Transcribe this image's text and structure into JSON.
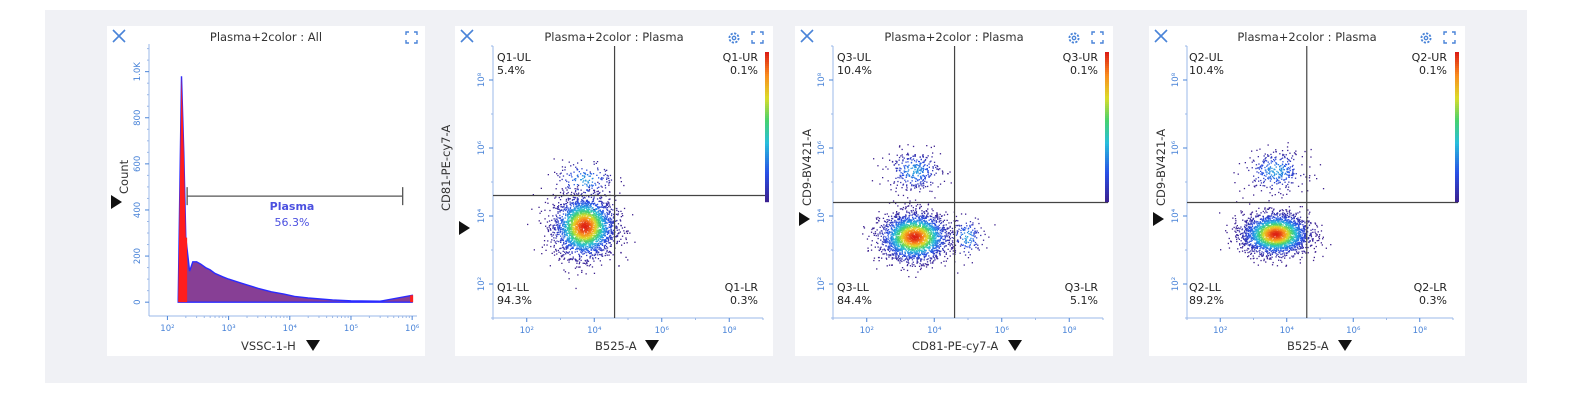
{
  "panels": [
    {
      "title": "Plasma+2color : All",
      "xlabel": "VSSC-1-H",
      "ylabel": "Count",
      "x_ticks": [
        "10²",
        "10³",
        "10⁴",
        "10⁵",
        "10⁶"
      ],
      "y_ticks": [
        "0",
        "200",
        "400",
        "600",
        "800",
        "1.0K"
      ],
      "gate": {
        "name": "Plasma",
        "percent": "56.3%"
      }
    },
    {
      "title": "Plasma+2color : Plasma",
      "xlabel": "B525-A",
      "ylabel": "CD81-PE-cy7-A",
      "x_ticks": [
        "10²",
        "10⁴",
        "10⁶",
        "10⁸"
      ],
      "y_ticks": [
        "10²",
        "10⁴",
        "10⁶",
        "10⁸"
      ],
      "quadrants": {
        "ul": {
          "name": "Q1-UL",
          "value": "5.4%"
        },
        "ur": {
          "name": "Q1-UR",
          "value": "0.1%"
        },
        "ll": {
          "name": "Q1-LL",
          "value": "94.3%"
        },
        "lr": {
          "name": "Q1-LR",
          "value": "0.3%"
        }
      }
    },
    {
      "title": "Plasma+2color : Plasma",
      "xlabel": "CD81-PE-cy7-A",
      "ylabel": "CD9-BV421-A",
      "x_ticks": [
        "10²",
        "10⁴",
        "10⁶",
        "10⁸"
      ],
      "y_ticks": [
        "10²",
        "10⁴",
        "10⁶",
        "10⁸"
      ],
      "quadrants": {
        "ul": {
          "name": "Q3-UL",
          "value": "10.4%"
        },
        "ur": {
          "name": "Q3-UR",
          "value": "0.1%"
        },
        "ll": {
          "name": "Q3-LL",
          "value": "84.4%"
        },
        "lr": {
          "name": "Q3-LR",
          "value": "5.1%"
        }
      }
    },
    {
      "title": "Plasma+2color : Plasma",
      "xlabel": "B525-A",
      "ylabel": "CD9-BV421-A",
      "x_ticks": [
        "10²",
        "10⁴",
        "10⁶",
        "10⁸"
      ],
      "y_ticks": [
        "10²",
        "10⁴",
        "10⁶",
        "10⁸"
      ],
      "quadrants": {
        "ul": {
          "name": "Q2-UL",
          "value": "10.4%"
        },
        "ur": {
          "name": "Q2-UR",
          "value": "0.1%"
        },
        "ll": {
          "name": "Q2-LL",
          "value": "89.2%"
        },
        "lr": {
          "name": "Q2-LR",
          "value": "0.3%"
        }
      }
    }
  ],
  "colors": {
    "histogram_spike": "#ff1e1e",
    "histogram_fill": "#7a2a8a",
    "histogram_edge": "#2b2bff",
    "gate_text": "#4b50e0",
    "axis_ticks": "#4a84d8",
    "background": "#f0f1f5"
  },
  "icons": [
    "close-icon",
    "expand-icon",
    "gear-icon",
    "dropdown-triangle-icon",
    "colorbar"
  ],
  "chart_data": [
    {
      "type": "histogram",
      "title": "Plasma+2color : All",
      "xlabel": "VSSC-1-H",
      "ylabel": "Count",
      "x_scale": "log",
      "xlim": [
        50,
        1200000
      ],
      "ylim": [
        -60,
        1120
      ],
      "x": [
        150,
        170,
        185,
        200,
        230,
        260,
        300,
        350,
        420,
        500,
        600,
        800,
        1000,
        1500,
        2000,
        3000,
        5000,
        8000,
        12000,
        20000,
        50000,
        100000,
        300000,
        1000000
      ],
      "y": [
        10,
        980,
        650,
        280,
        135,
        175,
        175,
        165,
        150,
        140,
        125,
        110,
        100,
        85,
        75,
        60,
        45,
        35,
        25,
        18,
        10,
        6,
        4,
        30
      ],
      "gate": {
        "name": "Plasma",
        "percent": 56.3,
        "range": [
          210,
          700000
        ]
      }
    },
    {
      "type": "scatter",
      "title": "Plasma+2color : Plasma",
      "xlabel": "B525-A",
      "ylabel": "CD81-PE-cy7-A",
      "x_scale": "log",
      "y_scale": "log",
      "xlim": [
        10,
        1000000000
      ],
      "ylim": [
        10,
        1000000000
      ],
      "quadrant_divider": {
        "x": 40000,
        "y": 40000
      },
      "quadrants": {
        "Q1-UL": 5.4,
        "Q1-UR": 0.1,
        "Q1-LL": 94.3,
        "Q1-LR": 0.3
      },
      "populations": [
        {
          "center": [
            5000,
            5000
          ],
          "spread": [
            0.45,
            0.45
          ],
          "count": 2600
        },
        {
          "center": [
            5000,
            120000
          ],
          "spread": [
            0.45,
            0.28
          ],
          "count": 160
        }
      ]
    },
    {
      "type": "scatter",
      "title": "Plasma+2color : Plasma",
      "xlabel": "CD81-PE-cy7-A",
      "ylabel": "CD9-BV421-A",
      "x_scale": "log",
      "y_scale": "log",
      "xlim": [
        10,
        1000000000
      ],
      "ylim": [
        10,
        1000000000
      ],
      "quadrant_divider": {
        "x": 40000,
        "y": 25000
      },
      "quadrants": {
        "Q3-UL": 10.4,
        "Q3-UR": 0.1,
        "Q3-LL": 84.4,
        "Q3-LR": 5.1
      },
      "populations": [
        {
          "center": [
            2500,
            2500
          ],
          "spread": [
            0.5,
            0.35
          ],
          "count": 2400
        },
        {
          "center": [
            2500,
            220000
          ],
          "spread": [
            0.4,
            0.3
          ],
          "count": 320
        },
        {
          "center": [
            90000,
            2500
          ],
          "spread": [
            0.25,
            0.3
          ],
          "count": 140
        }
      ]
    },
    {
      "type": "scatter",
      "title": "Plasma+2color : Plasma",
      "xlabel": "B525-A",
      "ylabel": "CD9-BV421-A",
      "x_scale": "log",
      "y_scale": "log",
      "xlim": [
        10,
        1000000000
      ],
      "ylim": [
        10,
        1000000000
      ],
      "quadrant_divider": {
        "x": 40000,
        "y": 25000
      },
      "quadrants": {
        "Q2-UL": 10.4,
        "Q2-UR": 0.1,
        "Q2-LL": 89.2,
        "Q2-LR": 0.3
      },
      "populations": [
        {
          "center": [
            4500,
            3000
          ],
          "spread": [
            0.5,
            0.3
          ],
          "count": 2500
        },
        {
          "center": [
            4500,
            220000
          ],
          "spread": [
            0.45,
            0.3
          ],
          "count": 320
        }
      ]
    }
  ]
}
